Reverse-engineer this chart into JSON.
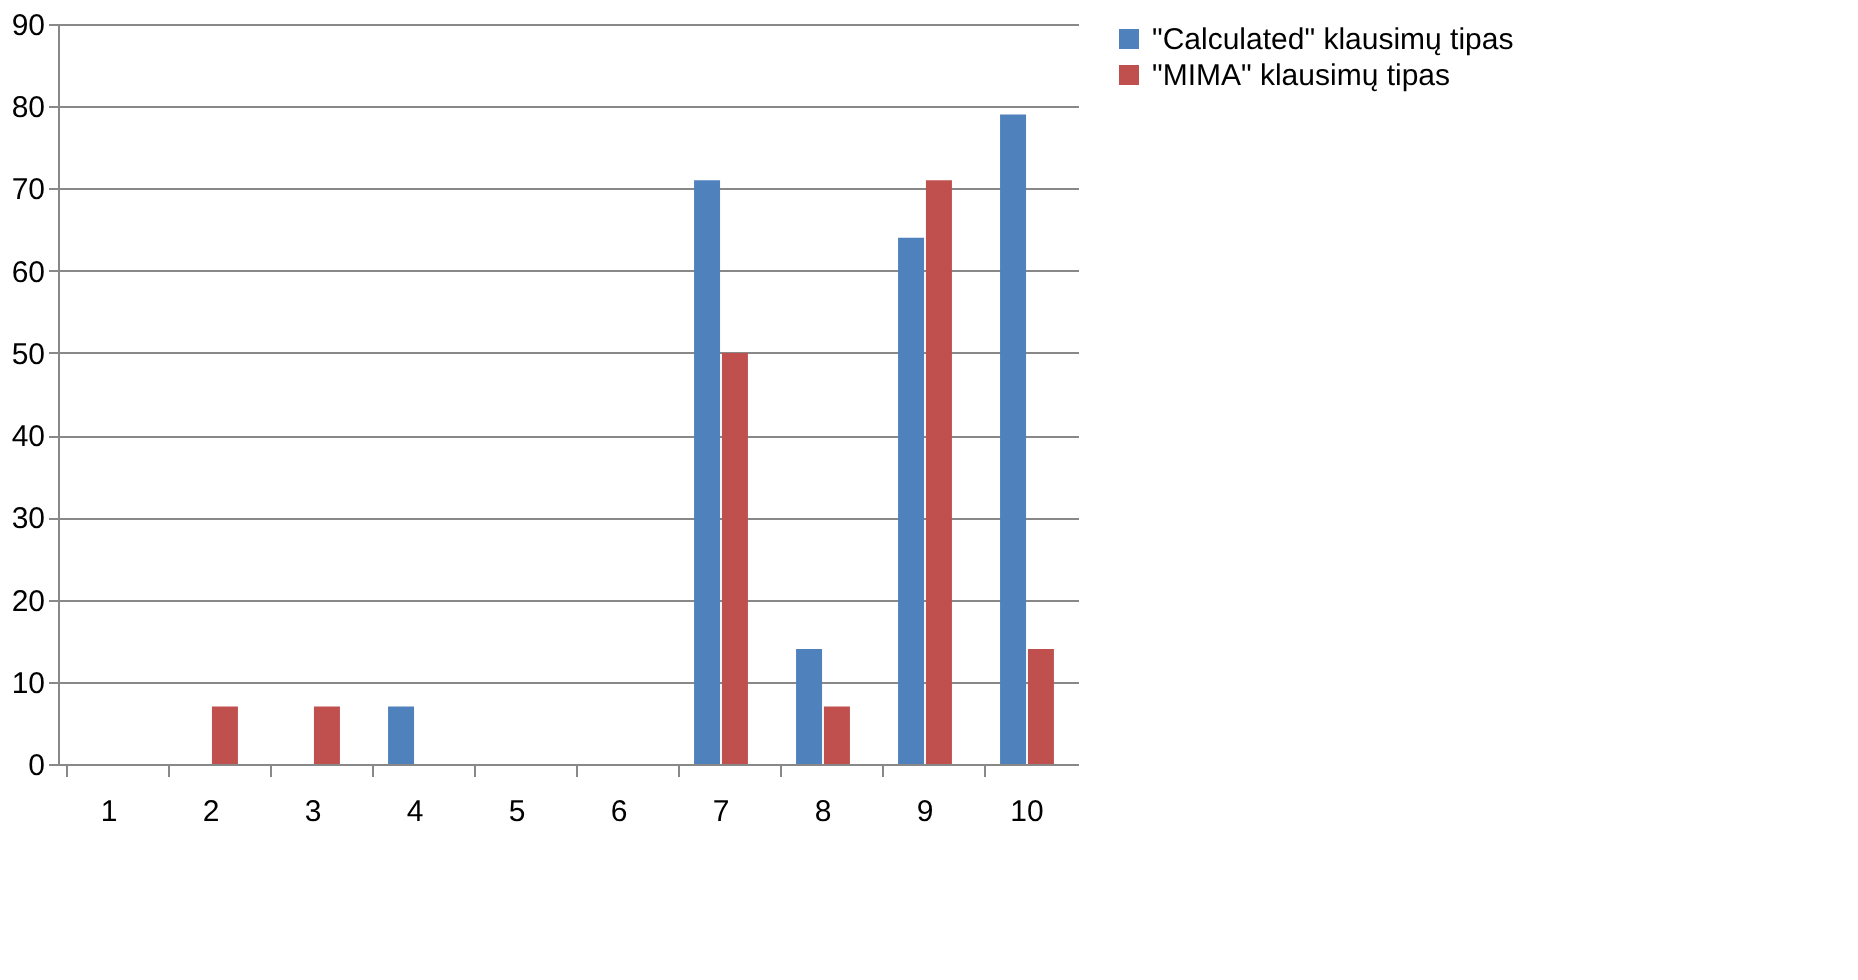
{
  "chart_data": {
    "type": "bar",
    "categories": [
      "1",
      "2",
      "3",
      "4",
      "5",
      "6",
      "7",
      "8",
      "9",
      "10"
    ],
    "series": [
      {
        "name": "\"Calculated\" klausimų tipas",
        "color": "#4f81bd",
        "values": [
          0,
          0,
          0,
          7,
          0,
          0,
          71,
          14,
          64,
          79
        ]
      },
      {
        "name": "\"MIMA\" klausimų tipas",
        "color": "#c0504d",
        "values": [
          0,
          7,
          7,
          0,
          0,
          0,
          50,
          7,
          71,
          14
        ]
      }
    ],
    "ylim": [
      0,
      90
    ],
    "yticks": [
      0,
      10,
      20,
      30,
      40,
      50,
      60,
      70,
      80,
      90
    ],
    "grid": "y",
    "legend": "right"
  }
}
